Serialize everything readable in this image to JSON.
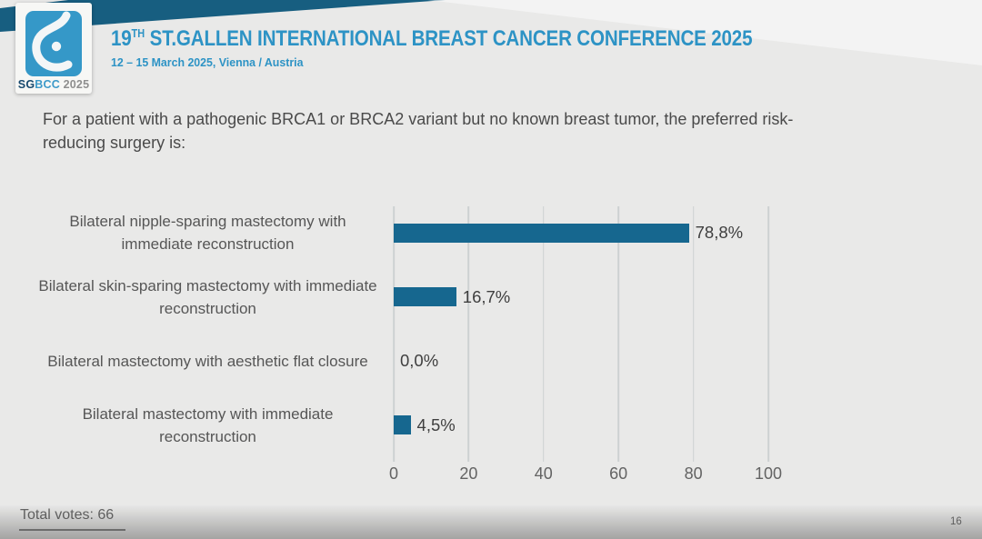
{
  "colors": {
    "accent_blue": "#2d93c5",
    "band_teal": "#175e80",
    "bar_blue": "#16678f",
    "logo_blue": "#3598c8"
  },
  "header": {
    "logo": {
      "sg": "SG",
      "bcc": "BCC",
      "year": " 2025",
      "icon": "sgbcc-breast-icon"
    },
    "title_number": "19",
    "title_sup": "TH",
    "title_rest": " ST.GALLEN INTERNATIONAL BREAST CANCER CONFERENCE 2025",
    "subtitle": "12 – 15 March 2025, Vienna / Austria"
  },
  "question": "For a patient with a pathogenic BRCA1 or BRCA2 variant but no known breast tumor, the preferred risk-reducing surgery is:",
  "chart_data": {
    "type": "bar",
    "orientation": "horizontal",
    "title": "",
    "xlabel": "",
    "ylabel": "",
    "categories": [
      "Bilateral nipple-sparing mastectomy with immediate reconstruction",
      "Bilateral skin-sparing mastectomy with immediate reconstruction",
      "Bilateral mastectomy with aesthetic flat closure",
      "Bilateral mastectomy with immediate reconstruction"
    ],
    "values": [
      78.8,
      16.7,
      0.0,
      4.5
    ],
    "value_labels": [
      "78,8%",
      "16,7%",
      "0,0%",
      "4,5%"
    ],
    "xlim": [
      0,
      100
    ],
    "x_ticks": [
      0,
      20,
      40,
      60,
      80,
      100
    ],
    "grid": true,
    "legend": false,
    "bar_color": "#16678f"
  },
  "footer": {
    "total_votes": "Total votes: 66",
    "page_number": "16"
  }
}
